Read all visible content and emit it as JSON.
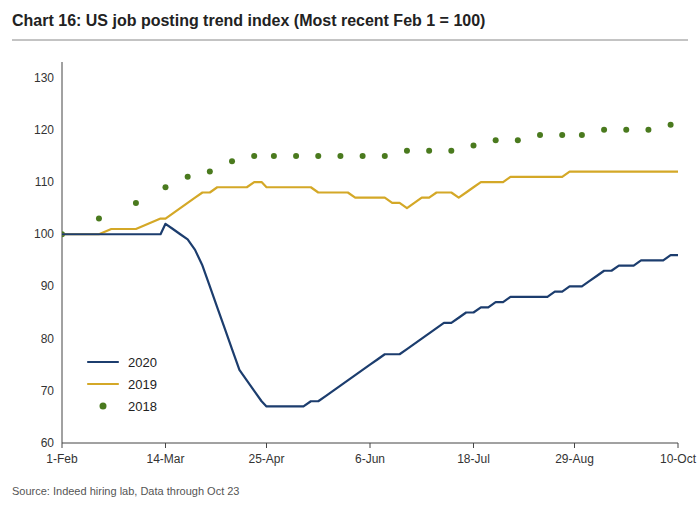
{
  "chart_data": {
    "type": "line",
    "title": "Chart 16: US job posting trend index (Most recent Feb 1 = 100)",
    "annotations": [
      "Source: Indeed hiring lab, Data through Oct 23"
    ],
    "xlim": [
      0,
      250
    ],
    "xticks": [
      {
        "value": 0,
        "label": "1-Feb"
      },
      {
        "value": 42,
        "label": "14-Mar"
      },
      {
        "value": 83,
        "label": "25-Apr"
      },
      {
        "value": 125,
        "label": "6-Jun"
      },
      {
        "value": 167,
        "label": "18-Jul"
      },
      {
        "value": 208,
        "label": "29-Aug"
      },
      {
        "value": 250,
        "label": "10-Oct"
      }
    ],
    "ylim": [
      60,
      133
    ],
    "yticks": [
      60,
      70,
      80,
      90,
      100,
      110,
      120,
      130
    ],
    "grid": false,
    "legend": "lower left",
    "series": [
      {
        "name": "2020",
        "color": "#1c3d6e",
        "line_style": "solid",
        "x": [
          0,
          5,
          10,
          15,
          20,
          25,
          30,
          35,
          40,
          42,
          45,
          48,
          51,
          54,
          57,
          60,
          63,
          66,
          69,
          72,
          75,
          78,
          81,
          83,
          86,
          89,
          92,
          95,
          98,
          101,
          104,
          107,
          110,
          113,
          116,
          119,
          122,
          125,
          128,
          131,
          134,
          137,
          140,
          143,
          146,
          149,
          152,
          155,
          158,
          161,
          164,
          167,
          170,
          173,
          176,
          179,
          182,
          185,
          188,
          191,
          194,
          197,
          200,
          203,
          206,
          208,
          211,
          214,
          217,
          220,
          223,
          226,
          229,
          232,
          235,
          238,
          241,
          244,
          247,
          250
        ],
        "values": [
          100,
          100,
          100,
          100,
          100,
          100,
          100,
          100,
          100,
          102,
          101,
          100,
          99,
          97,
          94,
          90,
          86,
          82,
          78,
          74,
          72,
          70,
          68,
          67,
          67,
          67,
          67,
          67,
          67,
          68,
          68,
          69,
          70,
          71,
          72,
          73,
          74,
          75,
          76,
          77,
          77,
          77,
          78,
          79,
          80,
          81,
          82,
          83,
          83,
          84,
          85,
          85,
          86,
          86,
          87,
          87,
          88,
          88,
          88,
          88,
          88,
          88,
          89,
          89,
          90,
          90,
          90,
          91,
          92,
          93,
          93,
          94,
          94,
          94,
          95,
          95,
          95,
          95,
          96,
          96
        ]
      },
      {
        "name": "2019",
        "color": "#d4a827",
        "line_style": "solid",
        "x": [
          0,
          5,
          10,
          15,
          20,
          25,
          30,
          35,
          40,
          42,
          45,
          48,
          51,
          54,
          57,
          60,
          63,
          66,
          69,
          72,
          75,
          78,
          81,
          83,
          86,
          89,
          92,
          95,
          98,
          101,
          104,
          107,
          110,
          113,
          116,
          119,
          122,
          125,
          128,
          131,
          134,
          137,
          140,
          143,
          146,
          149,
          152,
          155,
          158,
          161,
          164,
          167,
          170,
          173,
          176,
          179,
          182,
          185,
          188,
          191,
          194,
          197,
          200,
          203,
          206,
          208,
          211,
          214,
          217,
          220,
          223,
          226,
          229,
          232,
          235,
          238,
          241,
          244,
          247,
          250
        ],
        "values": [
          100,
          100,
          100,
          100,
          101,
          101,
          101,
          102,
          103,
          103,
          104,
          105,
          106,
          107,
          108,
          108,
          109,
          109,
          109,
          109,
          109,
          110,
          110,
          109,
          109,
          109,
          109,
          109,
          109,
          109,
          108,
          108,
          108,
          108,
          108,
          107,
          107,
          107,
          107,
          107,
          106,
          106,
          105,
          106,
          107,
          107,
          108,
          108,
          108,
          107,
          108,
          109,
          110,
          110,
          110,
          110,
          111,
          111,
          111,
          111,
          111,
          111,
          111,
          111,
          112,
          112,
          112,
          112,
          112,
          112,
          112,
          112,
          112,
          112,
          112,
          112,
          112,
          112,
          112,
          112
        ]
      },
      {
        "name": "2018",
        "color": "#4a7a1e",
        "line_style": "none",
        "marker": "circle",
        "x": [
          0,
          15,
          30,
          42,
          51,
          60,
          69,
          78,
          86,
          95,
          104,
          113,
          122,
          131,
          140,
          149,
          158,
          167,
          176,
          185,
          194,
          203,
          211,
          220,
          229,
          238,
          247
        ],
        "values": [
          100,
          103,
          106,
          109,
          111,
          112,
          114,
          115,
          115,
          115,
          115,
          115,
          115,
          115,
          116,
          116,
          116,
          117,
          118,
          118,
          119,
          119,
          119,
          120,
          120,
          120,
          121
        ]
      }
    ]
  }
}
